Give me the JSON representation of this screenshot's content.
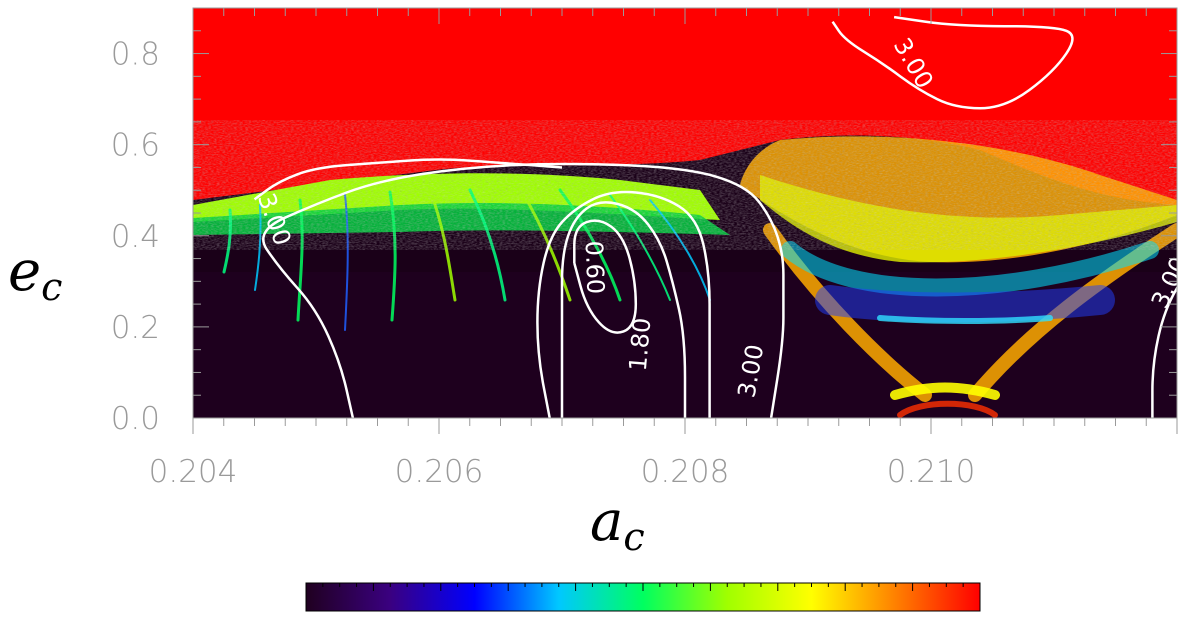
{
  "chart_data": {
    "type": "heatmap",
    "title": "",
    "xlabel": {
      "base": "a",
      "sub": "c"
    },
    "ylabel": {
      "base": "e",
      "sub": "c"
    },
    "xlim": [
      0.204,
      0.212
    ],
    "ylim": [
      0.0,
      0.9
    ],
    "x_ticks": [
      "0.204",
      "0.206",
      "0.208",
      "0.210"
    ],
    "x_tick_values": [
      0.204,
      0.206,
      0.208,
      0.21
    ],
    "y_ticks": [
      "0.0",
      "0.2",
      "0.4",
      "0.6",
      "0.8"
    ],
    "y_tick_values": [
      0.0,
      0.2,
      0.4,
      0.6,
      0.8
    ],
    "colormap": [
      "#200020",
      "#3a0080",
      "#0000ff",
      "#00c8ff",
      "#00ff60",
      "#a0ff00",
      "#ffff00",
      "#ff8000",
      "#ff0000"
    ],
    "colorbar": {
      "orientation": "horizontal",
      "labels": []
    },
    "contours": [
      {
        "label": "3.00",
        "points": [
          [
            0.2053,
            0.0
          ],
          [
            0.2052,
            0.12
          ],
          [
            0.205,
            0.24
          ],
          [
            0.2047,
            0.33
          ],
          [
            0.2045,
            0.41
          ],
          [
            0.205,
            0.47
          ],
          [
            0.2055,
            0.52
          ],
          [
            0.2062,
            0.55
          ],
          [
            0.207,
            0.56
          ],
          [
            0.208,
            0.55
          ],
          [
            0.2085,
            0.51
          ],
          [
            0.2087,
            0.44
          ],
          [
            0.2088,
            0.36
          ],
          [
            0.2088,
            0.27
          ],
          [
            0.2088,
            0.17
          ],
          [
            0.2087,
            0.0
          ]
        ],
        "labels_at": [
          [
            0.2046,
            0.43,
            70
          ],
          [
            0.2086,
            0.1,
            -80
          ]
        ]
      },
      {
        "label": "1.80",
        "points": [
          [
            0.207,
            0.0
          ],
          [
            0.207,
            0.12
          ],
          [
            0.207,
            0.24
          ],
          [
            0.207,
            0.36
          ],
          [
            0.2071,
            0.44
          ],
          [
            0.2073,
            0.48
          ],
          [
            0.2076,
            0.46
          ],
          [
            0.2078,
            0.39
          ],
          [
            0.2079,
            0.3
          ],
          [
            0.208,
            0.18
          ],
          [
            0.208,
            0.0
          ]
        ],
        "labels_at": [
          [
            0.2077,
            0.16,
            -85
          ]
        ]
      },
      {
        "label": "0.60",
        "points": [
          [
            0.2071,
            0.34
          ],
          [
            0.2072,
            0.24
          ],
          [
            0.2074,
            0.18
          ],
          [
            0.2076,
            0.2
          ],
          [
            0.2076,
            0.3
          ],
          [
            0.2075,
            0.4
          ],
          [
            0.2073,
            0.44
          ],
          [
            0.2071,
            0.42
          ],
          [
            0.2071,
            0.34
          ]
        ],
        "labels_at": [
          [
            0.2072,
            0.33,
            88
          ]
        ]
      },
      {
        "label": "",
        "points": [
          [
            0.2069,
            0.0
          ],
          [
            0.2068,
            0.14
          ],
          [
            0.2068,
            0.28
          ],
          [
            0.2069,
            0.4
          ],
          [
            0.2071,
            0.46
          ],
          [
            0.2074,
            0.5
          ],
          [
            0.2078,
            0.49
          ],
          [
            0.2081,
            0.44
          ],
          [
            0.2082,
            0.32
          ],
          [
            0.2082,
            0.18
          ],
          [
            0.2082,
            0.0
          ]
        ],
        "labels_at": []
      },
      {
        "label": "3.00",
        "points": [
          [
            0.2097,
            0.88
          ],
          [
            0.2102,
            0.86
          ],
          [
            0.211,
            0.86
          ],
          [
            0.2112,
            0.84
          ],
          [
            0.211,
            0.76
          ],
          [
            0.2106,
            0.68
          ],
          [
            0.2102,
            0.68
          ],
          [
            0.2099,
            0.72
          ],
          [
            0.2096,
            0.78
          ],
          [
            0.2093,
            0.83
          ],
          [
            0.2092,
            0.87
          ]
        ],
        "labels_at": [
          [
            0.2098,
            0.77,
            60
          ]
        ]
      },
      {
        "label": "3.00",
        "points": [
          [
            0.2118,
            0.0
          ],
          [
            0.2118,
            0.12
          ],
          [
            0.2119,
            0.24
          ],
          [
            0.2121,
            0.33
          ],
          [
            0.2124,
            0.38
          ]
        ],
        "labels_at": [
          [
            0.212,
            0.29,
            -65
          ]
        ]
      },
      {
        "label": "",
        "points": [
          [
            0.2045,
            0.48
          ],
          [
            0.2047,
            0.52
          ],
          [
            0.205,
            0.55
          ],
          [
            0.2055,
            0.56
          ],
          [
            0.206,
            0.57
          ],
          [
            0.2065,
            0.56
          ],
          [
            0.207,
            0.55
          ]
        ],
        "labels_at": []
      }
    ]
  }
}
